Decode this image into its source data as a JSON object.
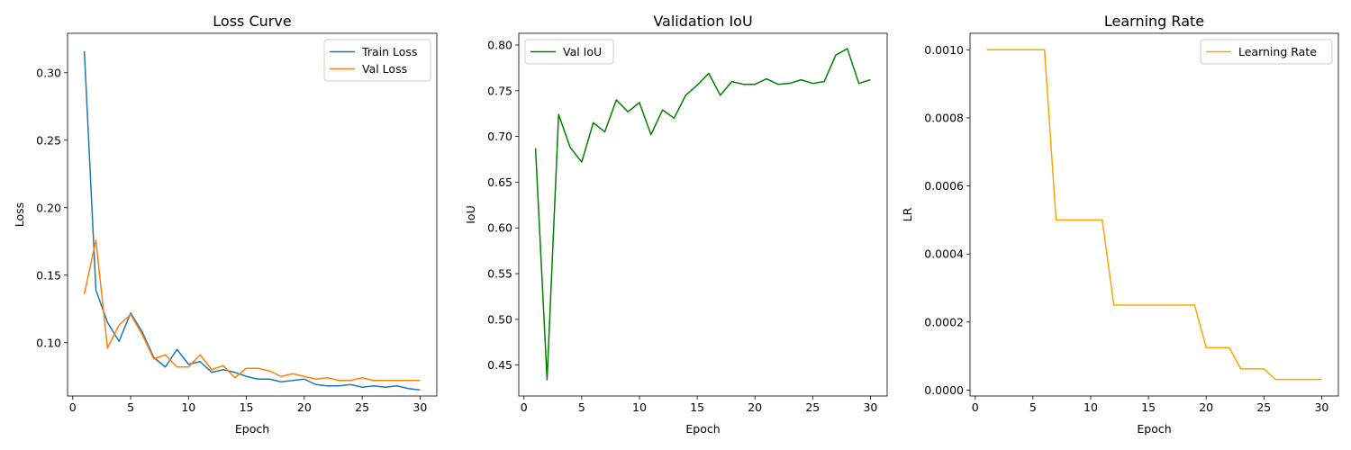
{
  "chart_data": [
    {
      "type": "line",
      "title": "Loss Curve",
      "xlabel": "Epoch",
      "ylabel": "Loss",
      "xlim": [
        -0.45,
        31.45
      ],
      "ylim": [
        0.0605,
        0.3292
      ],
      "xticks": [
        0,
        5,
        10,
        15,
        20,
        25,
        30
      ],
      "xtick_labels": [
        "0",
        "5",
        "10",
        "15",
        "20",
        "25",
        "30"
      ],
      "yticks": [
        0.1,
        0.15,
        0.2,
        0.25,
        0.3
      ],
      "ytick_labels": [
        "0.10",
        "0.15",
        "0.20",
        "0.25",
        "0.30"
      ],
      "legend": "top-right",
      "x": [
        1,
        2,
        3,
        4,
        5,
        6,
        7,
        8,
        9,
        10,
        11,
        12,
        13,
        14,
        15,
        16,
        17,
        18,
        19,
        20,
        21,
        22,
        23,
        24,
        25,
        26,
        27,
        28,
        29,
        30
      ],
      "series": [
        {
          "name": "Train Loss",
          "color": "#1f77b4",
          "values": [
            0.316,
            0.139,
            0.115,
            0.101,
            0.122,
            0.108,
            0.089,
            0.082,
            0.095,
            0.084,
            0.086,
            0.078,
            0.08,
            0.078,
            0.075,
            0.073,
            0.073,
            0.071,
            0.072,
            0.073,
            0.069,
            0.068,
            0.068,
            0.069,
            0.067,
            0.068,
            0.067,
            0.068,
            0.066,
            0.065
          ]
        },
        {
          "name": "Val Loss",
          "color": "#ff7f0e",
          "values": [
            0.136,
            0.176,
            0.096,
            0.113,
            0.121,
            0.106,
            0.088,
            0.091,
            0.082,
            0.082,
            0.091,
            0.08,
            0.083,
            0.074,
            0.081,
            0.081,
            0.079,
            0.075,
            0.077,
            0.075,
            0.073,
            0.074,
            0.072,
            0.072,
            0.074,
            0.072,
            0.072,
            0.072,
            0.072,
            0.072
          ]
        }
      ]
    },
    {
      "type": "line",
      "title": "Validation IoU",
      "xlabel": "Epoch",
      "ylabel": "IoU",
      "xlim": [
        -0.45,
        31.45
      ],
      "ylim": [
        0.4162,
        0.8128
      ],
      "xticks": [
        0,
        5,
        10,
        15,
        20,
        25,
        30
      ],
      "xtick_labels": [
        "0",
        "5",
        "10",
        "15",
        "20",
        "25",
        "30"
      ],
      "yticks": [
        0.45,
        0.5,
        0.55,
        0.6,
        0.65,
        0.7,
        0.75,
        0.8
      ],
      "ytick_labels": [
        "0.45",
        "0.50",
        "0.55",
        "0.60",
        "0.65",
        "0.70",
        "0.75",
        "0.80"
      ],
      "legend": "top-left",
      "x": [
        1,
        2,
        3,
        4,
        5,
        6,
        7,
        8,
        9,
        10,
        11,
        12,
        13,
        14,
        15,
        16,
        17,
        18,
        19,
        20,
        21,
        22,
        23,
        24,
        25,
        26,
        27,
        28,
        29,
        30
      ],
      "series": [
        {
          "name": "Val IoU",
          "color": "#008000",
          "values": [
            0.687,
            0.434,
            0.724,
            0.688,
            0.672,
            0.715,
            0.705,
            0.74,
            0.727,
            0.737,
            0.702,
            0.729,
            0.72,
            0.745,
            0.756,
            0.769,
            0.745,
            0.76,
            0.757,
            0.757,
            0.763,
            0.757,
            0.758,
            0.762,
            0.758,
            0.76,
            0.789,
            0.796,
            0.758,
            0.762
          ]
        }
      ]
    },
    {
      "type": "line",
      "title": "Learning Rate",
      "xlabel": "Epoch",
      "ylabel": "LR",
      "xlim": [
        -0.45,
        31.45
      ],
      "ylim": [
        -1.72e-05,
        0.0010484
      ],
      "xticks": [
        0,
        5,
        10,
        15,
        20,
        25,
        30
      ],
      "xtick_labels": [
        "0",
        "5",
        "10",
        "15",
        "20",
        "25",
        "30"
      ],
      "yticks": [
        0.0,
        0.0002,
        0.0004,
        0.0006,
        0.0008,
        0.001
      ],
      "ytick_labels": [
        "0.0000",
        "0.0002",
        "0.0004",
        "0.0006",
        "0.0008",
        "0.0010"
      ],
      "legend": "top-right",
      "x": [
        1,
        2,
        3,
        4,
        5,
        6,
        7,
        8,
        9,
        10,
        11,
        12,
        13,
        14,
        15,
        16,
        17,
        18,
        19,
        20,
        21,
        22,
        23,
        24,
        25,
        26,
        27,
        28,
        29,
        30
      ],
      "series": [
        {
          "name": "Learning Rate",
          "color": "#ffa500",
          "values": [
            0.001,
            0.001,
            0.001,
            0.001,
            0.001,
            0.001,
            0.0005,
            0.0005,
            0.0005,
            0.0005,
            0.0005,
            0.00025,
            0.00025,
            0.00025,
            0.00025,
            0.00025,
            0.00025,
            0.00025,
            0.00025,
            0.000125,
            0.000125,
            0.000125,
            6.25e-05,
            6.25e-05,
            6.25e-05,
            3.125e-05,
            3.125e-05,
            3.125e-05,
            3.125e-05,
            3.125e-05
          ]
        }
      ]
    }
  ]
}
